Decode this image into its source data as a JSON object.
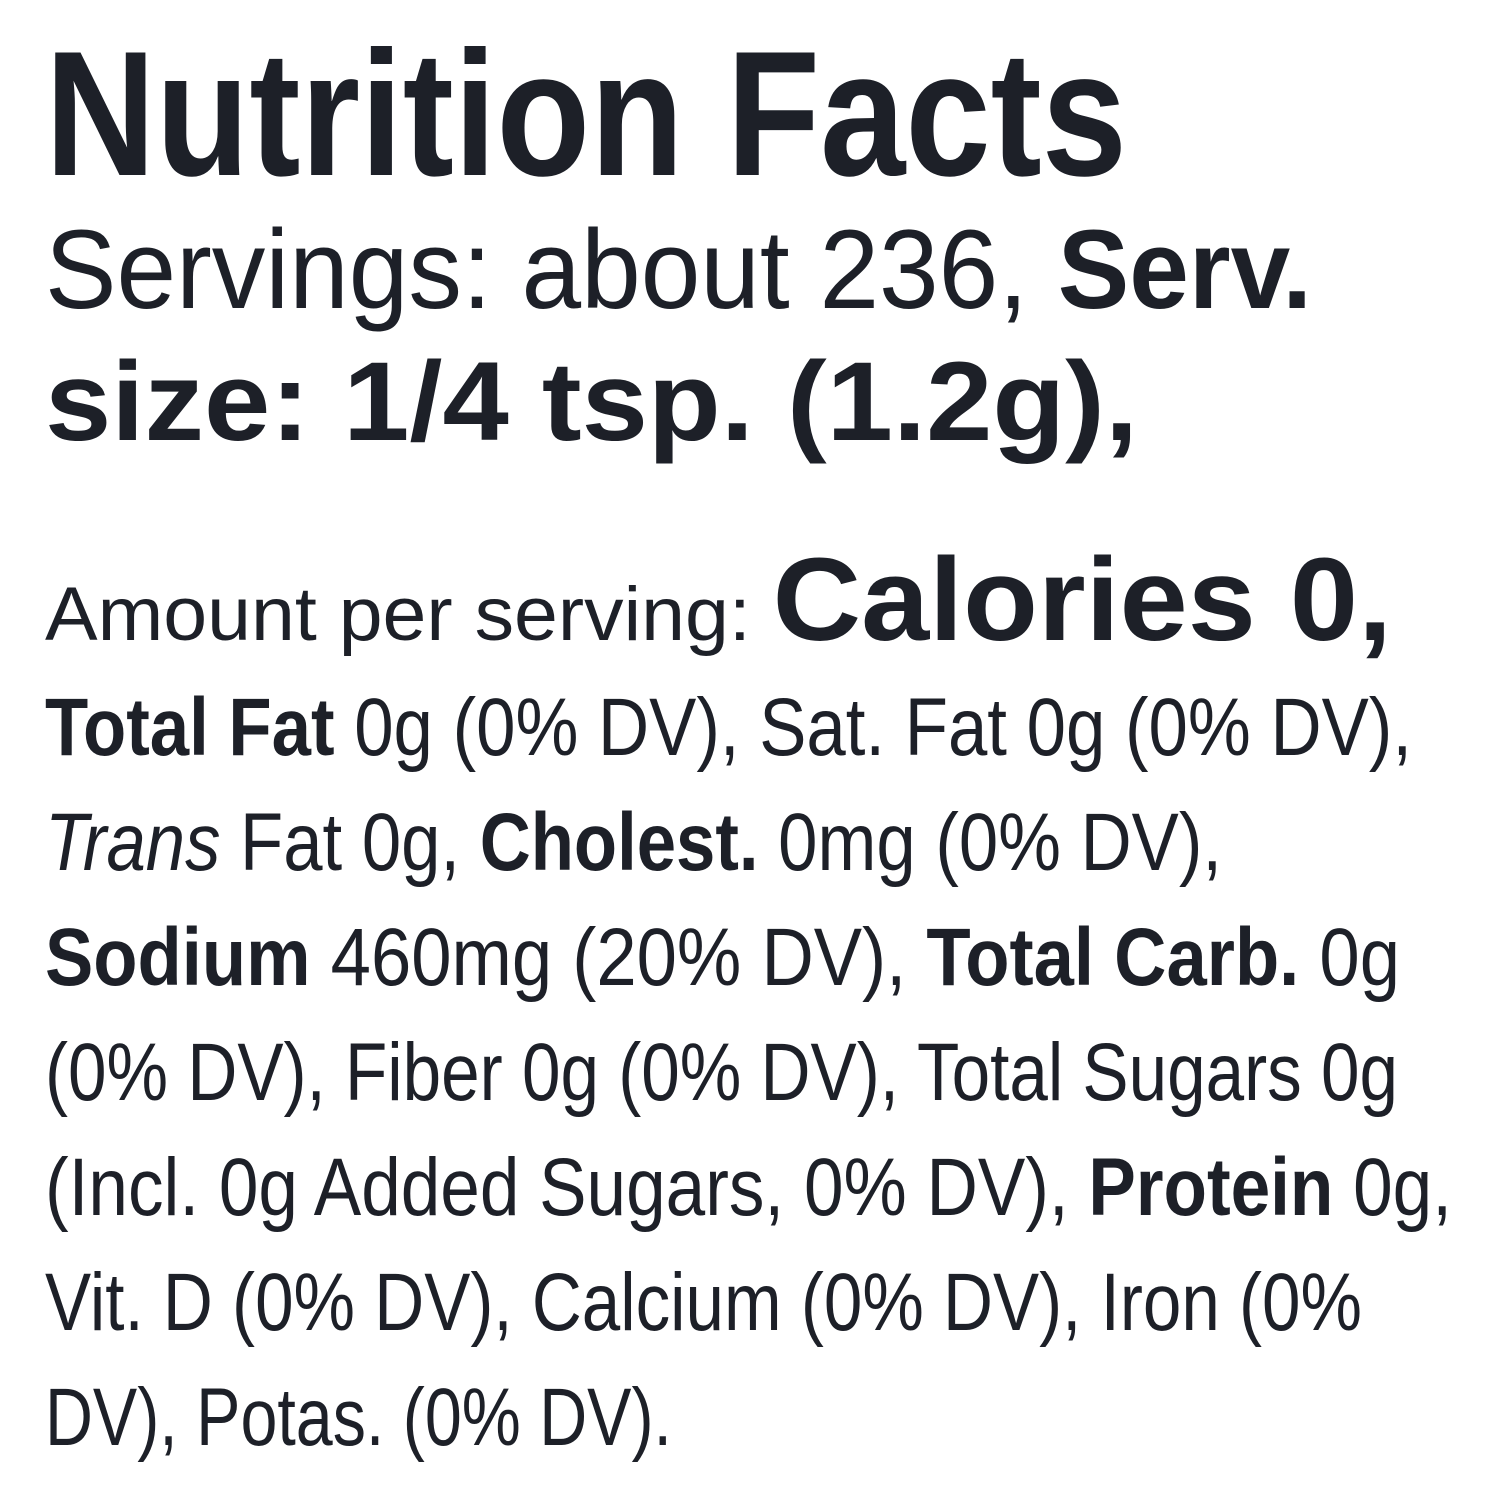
{
  "label": {
    "title": "Nutrition Facts",
    "lines": [
      [
        {
          "text": "Servings: about 236, "
        },
        {
          "text": "Serv.",
          "bold": true
        }
      ],
      [
        {
          "text": "size: 1/4 tsp. (1.2g),",
          "bold": true
        }
      ],
      [
        {
          "text": "Amount per serving: "
        },
        {
          "text": "Calories 0,",
          "bold": true
        }
      ],
      [
        {
          "text": "Total Fat",
          "bold": true
        },
        {
          "text": " 0g (0% DV), Sat. Fat 0g (0% DV),"
        }
      ],
      [
        {
          "text": "Trans",
          "italic": true
        },
        {
          "text": " Fat 0g, "
        },
        {
          "text": "Cholest.",
          "bold": true
        },
        {
          "text": " 0mg (0% DV),"
        }
      ],
      [
        {
          "text": "Sodium",
          "bold": true
        },
        {
          "text": " 460mg (20% DV), "
        },
        {
          "text": "Total Carb.",
          "bold": true
        },
        {
          "text": " 0g"
        }
      ],
      [
        {
          "text": "(0% DV), Fiber 0g (0% DV), Total Sugars 0g"
        }
      ],
      [
        {
          "text": "(Incl. 0g Added Sugars, 0% DV), "
        },
        {
          "text": "Protein",
          "bold": true
        },
        {
          "text": " 0g,"
        }
      ],
      [
        {
          "text": "Vit. D (0% DV), Calcium (0% DV), Iron (0%"
        }
      ],
      [
        {
          "text": "DV), Potas. (0% DV)."
        }
      ]
    ]
  }
}
